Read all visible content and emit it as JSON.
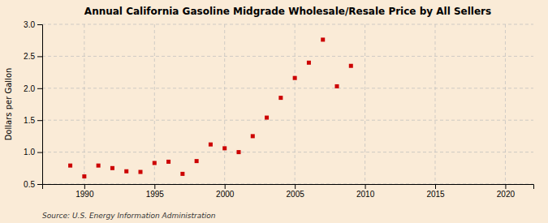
{
  "chart_data": {
    "type": "scatter",
    "title": "Annual California Gasoline Midgrade Wholesale/Resale Price by All Sellers",
    "y_label": "Dollars per Gallon",
    "annotations": [
      "Source: U.S. Energy Information Administration"
    ],
    "x": [
      1989,
      1990,
      1991,
      1992,
      1993,
      1994,
      1995,
      1996,
      1997,
      1998,
      1999,
      2000,
      2001,
      2002,
      2003,
      2004,
      2005,
      2006,
      2007,
      2008,
      2009
    ],
    "values": [
      0.79,
      0.62,
      0.79,
      0.75,
      0.7,
      0.69,
      0.83,
      0.85,
      0.66,
      0.86,
      1.12,
      1.06,
      1.0,
      1.25,
      1.54,
      1.85,
      2.16,
      2.4,
      2.76,
      2.03,
      2.35
    ],
    "color": "#cc0000",
    "marker": "square",
    "xlim": [
      1987,
      2022
    ],
    "ylim": [
      0.5,
      3.0
    ],
    "xticks": [
      1990,
      1995,
      2000,
      2005,
      2010,
      2015,
      2020
    ],
    "yticks": [
      0.5,
      {
        "value": 1.0,
        "label": "1.0"
      },
      1.5,
      {
        "value": 2.0,
        "label": "2.0"
      },
      2.5,
      {
        "value": 3.0,
        "label": "3.0"
      }
    ],
    "grid": true
  }
}
